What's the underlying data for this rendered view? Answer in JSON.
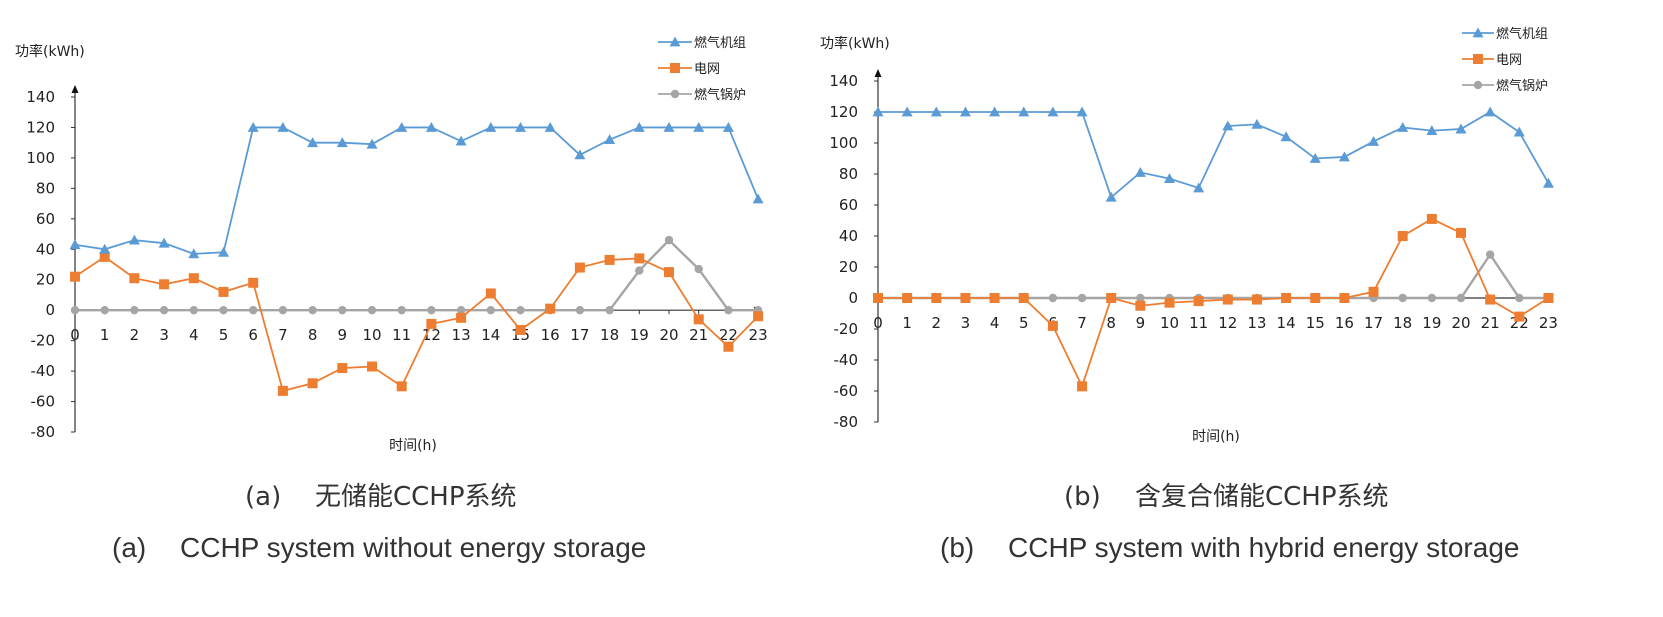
{
  "chart_data": [
    {
      "type": "line",
      "ylabel": "功率(kWh)",
      "xlabel": "时间(h)",
      "ylim": [
        -80,
        140
      ],
      "ytick_step": 20,
      "categories": [
        "0",
        "1",
        "2",
        "3",
        "4",
        "5",
        "6",
        "7",
        "8",
        "9",
        "10",
        "11",
        "12",
        "13",
        "14",
        "15",
        "16",
        "17",
        "18",
        "19",
        "20",
        "21",
        "22",
        "23"
      ],
      "series": [
        {
          "name": "燃气机组",
          "color": "#5b9bd5",
          "marker": "triangle",
          "values": [
            43,
            40,
            46,
            44,
            37,
            38,
            120,
            120,
            110,
            110,
            109,
            120,
            120,
            111,
            120,
            120,
            120,
            102,
            112,
            120,
            120,
            120,
            120,
            73
          ]
        },
        {
          "name": "电网",
          "color": "#ed7d31",
          "marker": "square",
          "values": [
            22,
            35,
            21,
            17,
            21,
            12,
            18,
            -53,
            -48,
            -38,
            -37,
            -50,
            -9,
            -5,
            11,
            -13,
            1,
            28,
            33,
            34,
            25,
            -6,
            -24,
            -4
          ]
        },
        {
          "name": "燃气锅炉",
          "color": "#a5a5a5",
          "marker": "circle",
          "values": [
            0,
            0,
            0,
            0,
            0,
            0,
            0,
            0,
            0,
            0,
            0,
            0,
            0,
            0,
            0,
            0,
            0,
            0,
            0,
            26,
            46,
            27,
            0,
            0
          ]
        }
      ],
      "caption_zh_tag": "(a)",
      "caption_zh": "无储能CCHP系统",
      "caption_en_tag": "(a)",
      "caption_en": "CCHP system without energy storage"
    },
    {
      "type": "line",
      "ylabel": "功率(kWh)",
      "xlabel": "时间(h)",
      "ylim": [
        -80,
        140
      ],
      "ytick_step": 20,
      "categories": [
        "0",
        "1",
        "2",
        "3",
        "4",
        "5",
        "6",
        "7",
        "8",
        "9",
        "10",
        "11",
        "12",
        "13",
        "14",
        "15",
        "16",
        "17",
        "18",
        "19",
        "20",
        "21",
        "22",
        "23"
      ],
      "series": [
        {
          "name": "燃气机组",
          "color": "#5b9bd5",
          "marker": "triangle",
          "values": [
            120,
            120,
            120,
            120,
            120,
            120,
            120,
            120,
            65,
            81,
            77,
            71,
            111,
            112,
            104,
            90,
            91,
            101,
            110,
            108,
            109,
            120,
            107,
            74
          ]
        },
        {
          "name": "电网",
          "color": "#ed7d31",
          "marker": "square",
          "values": [
            0,
            0,
            0,
            0,
            0,
            0,
            -18,
            -57,
            0,
            -5,
            -3,
            -2,
            -1,
            -1,
            0,
            0,
            0,
            4,
            40,
            51,
            42,
            -1,
            -12,
            0
          ]
        },
        {
          "name": "燃气锅炉",
          "color": "#a5a5a5",
          "marker": "circle",
          "values": [
            0,
            0,
            0,
            0,
            0,
            0,
            0,
            0,
            0,
            0,
            0,
            0,
            0,
            0,
            0,
            0,
            0,
            0,
            0,
            0,
            0,
            28,
            0,
            0
          ]
        }
      ],
      "caption_zh_tag": "(b)",
      "caption_zh": "含复合储能CCHP系统",
      "caption_en_tag": "(b)",
      "caption_en": "CCHP system with hybrid energy storage"
    }
  ]
}
